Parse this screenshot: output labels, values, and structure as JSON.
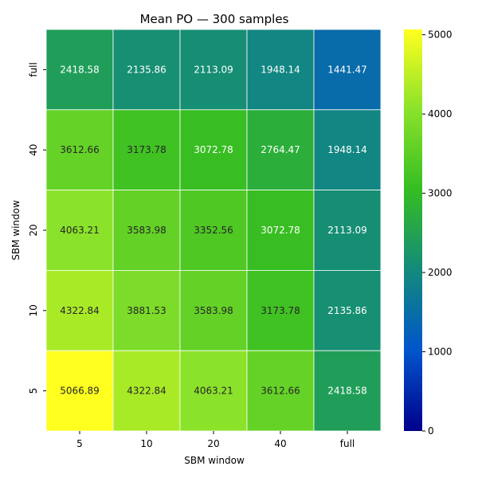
{
  "chart_data": {
    "type": "heatmap",
    "title": "Mean PO — 300 samples",
    "xlabel": "SBM window",
    "ylabel": "SBM window",
    "x_categories": [
      "5",
      "10",
      "20",
      "40",
      "full"
    ],
    "y_categories_top_to_bottom": [
      "full",
      "40",
      "20",
      "10",
      "5"
    ],
    "values": [
      [
        2418.58,
        2135.86,
        2113.09,
        1948.14,
        1441.47
      ],
      [
        3612.66,
        3173.78,
        3072.78,
        2764.47,
        1948.14
      ],
      [
        4063.21,
        3583.98,
        3352.56,
        3072.78,
        2113.09
      ],
      [
        4322.84,
        3881.53,
        3583.98,
        3173.78,
        2135.86
      ],
      [
        5066.89,
        4322.84,
        4063.21,
        3612.66,
        2418.58
      ]
    ],
    "colorbar": {
      "vmin": 0,
      "vmax": 5066.89,
      "ticks": [
        0,
        1000,
        2000,
        3000,
        4000,
        5000
      ],
      "colormap_stops": [
        "#00008b",
        "#0055cc",
        "#138a7c",
        "#35bd22",
        "#8ae22a",
        "#ffff20"
      ]
    },
    "grid_lines": true,
    "grid_color": "#ffffff"
  }
}
